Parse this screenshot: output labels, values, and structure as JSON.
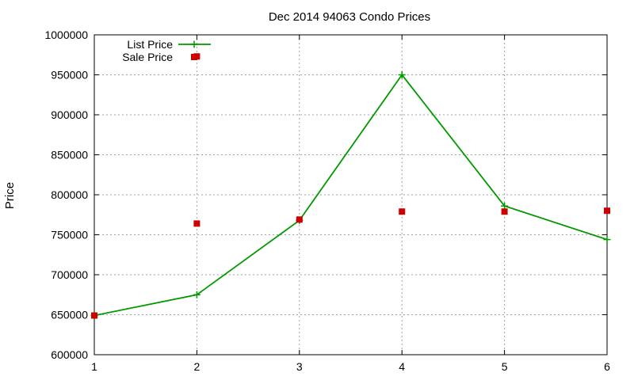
{
  "chart_data": {
    "type": "line",
    "title": "Dec 2014 94063 Condo Prices",
    "xlabel": "",
    "ylabel": "Price",
    "x": [
      1,
      2,
      3,
      4,
      5,
      6
    ],
    "xlim": [
      1,
      6
    ],
    "ylim": [
      600000,
      1000000
    ],
    "x_ticks": [
      1,
      2,
      3,
      4,
      5,
      6
    ],
    "y_ticks": [
      600000,
      650000,
      700000,
      750000,
      800000,
      850000,
      900000,
      950000,
      1000000
    ],
    "grid": true,
    "legend_position": "top-left",
    "series": [
      {
        "name": "List Price",
        "style": "linespoints",
        "color": "#009900",
        "points": [
          {
            "x": 1,
            "y": 649000
          },
          {
            "x": 2,
            "y": 675000
          },
          {
            "x": 3,
            "y": 768000
          },
          {
            "x": 4,
            "y": 950000
          },
          {
            "x": 5,
            "y": 786000
          },
          {
            "x": 6,
            "y": 744000
          }
        ]
      },
      {
        "name": "Sale Price",
        "style": "points",
        "color": "#cc0000",
        "points": [
          {
            "x": 1,
            "y": 649000
          },
          {
            "x": 2,
            "y": 973000
          },
          {
            "x": 2,
            "y": 764000
          },
          {
            "x": 3,
            "y": 769000
          },
          {
            "x": 4,
            "y": 779000
          },
          {
            "x": 5,
            "y": 779000
          },
          {
            "x": 6,
            "y": 780000
          }
        ]
      }
    ]
  }
}
